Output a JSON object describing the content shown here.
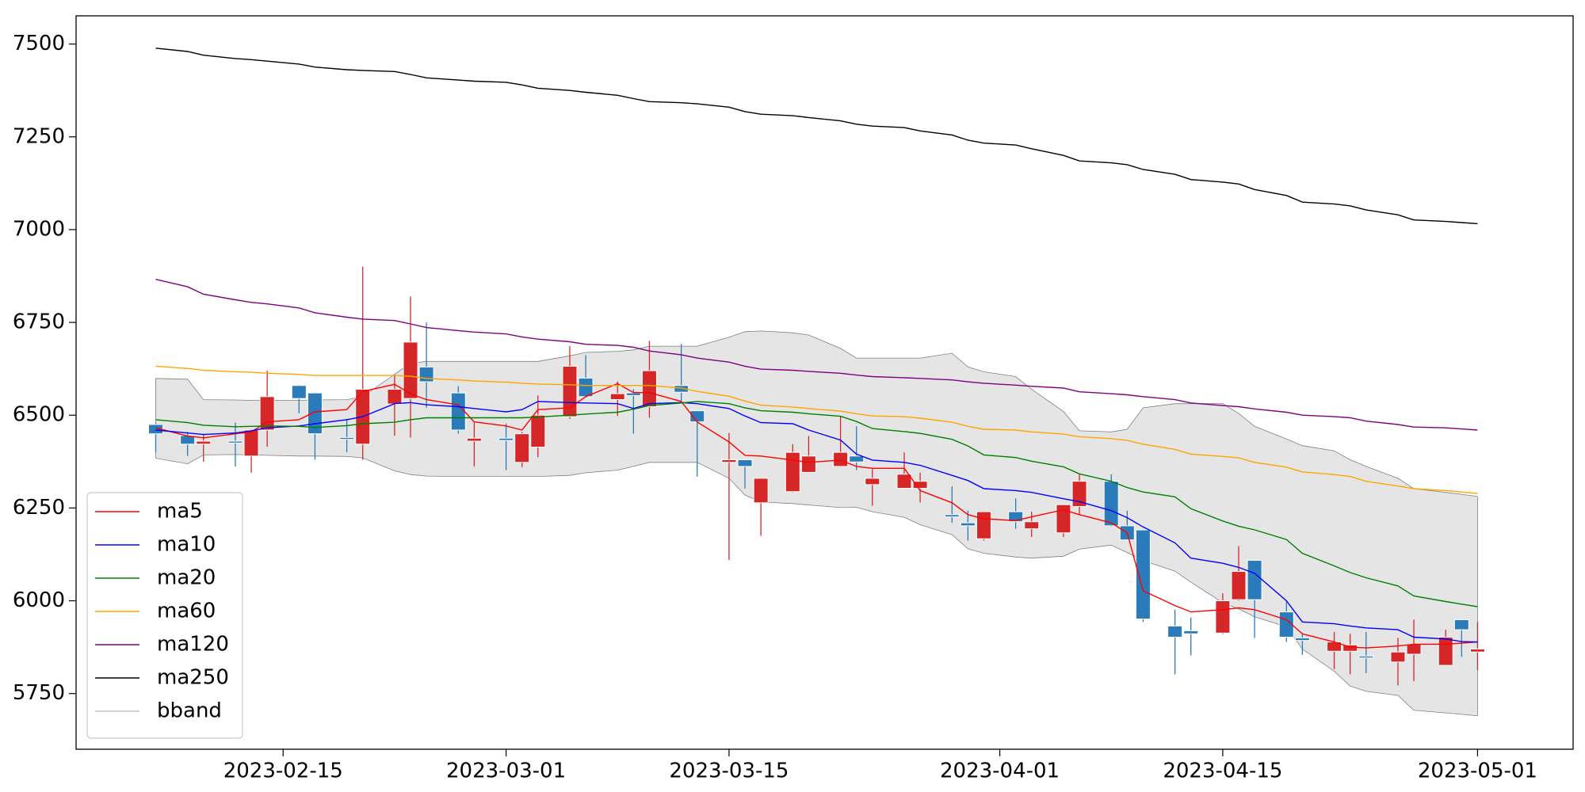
{
  "chart_data": {
    "type": "candlestick",
    "x": [
      "2023-02-07",
      "2023-02-09",
      "2023-02-10",
      "2023-02-12",
      "2023-02-13",
      "2023-02-14",
      "2023-02-16",
      "2023-02-17",
      "2023-02-19",
      "2023-02-20",
      "2023-02-22",
      "2023-02-23",
      "2023-02-24",
      "2023-02-26",
      "2023-02-27",
      "2023-03-01",
      "2023-03-02",
      "2023-03-03",
      "2023-03-05",
      "2023-03-06",
      "2023-03-08",
      "2023-03-09",
      "2023-03-10",
      "2023-03-12",
      "2023-03-13",
      "2023-03-15",
      "2023-03-16",
      "2023-03-17",
      "2023-03-19",
      "2023-03-20",
      "2023-03-22",
      "2023-03-23",
      "2023-03-24",
      "2023-03-26",
      "2023-03-27",
      "2023-03-29",
      "2023-03-30",
      "2023-03-31",
      "2023-04-02",
      "2023-04-03",
      "2023-04-05",
      "2023-04-06",
      "2023-04-08",
      "2023-04-09",
      "2023-04-10",
      "2023-04-12",
      "2023-04-13",
      "2023-04-15",
      "2023-04-16",
      "2023-04-17",
      "2023-04-19",
      "2023-04-20",
      "2023-04-22",
      "2023-04-23",
      "2023-04-24",
      "2023-04-26",
      "2023-04-27",
      "2023-04-29",
      "2023-04-30",
      "2023-05-01"
    ],
    "open": [
      6475,
      6445,
      6422,
      6430,
      6390,
      6460,
      6580,
      6560,
      6440,
      6422,
      6530,
      6545,
      6630,
      6560,
      6430,
      6438,
      6373,
      6414,
      6496,
      6600,
      6542,
      6560,
      6523,
      6580,
      6512,
      6373,
      6380,
      6264,
      6294,
      6346,
      6362,
      6390,
      6313,
      6303,
      6303,
      6232,
      6210,
      6167,
      6240,
      6194,
      6183,
      6254,
      6322,
      6202,
      6191,
      5932,
      5919,
      5913,
      6003,
      6109,
      5970,
      5900,
      5864,
      5864,
      5851,
      5835,
      5856,
      5826,
      5949,
      5862
    ],
    "high": [
      6480,
      6455,
      6450,
      6480,
      6462,
      6620,
      6582,
      6562,
      6490,
      6900,
      6610,
      6820,
      6750,
      6578,
      6480,
      6478,
      6455,
      6553,
      6686,
      6662,
      6591,
      6570,
      6700,
      6692,
      6513,
      6452,
      6380,
      6332,
      6422,
      6444,
      6496,
      6470,
      6355,
      6400,
      6345,
      6308,
      6243,
      6242,
      6276,
      6240,
      6260,
      6341,
      6341,
      6243,
      6192,
      5976,
      5955,
      6020,
      6147,
      6110,
      5998,
      5913,
      5916,
      5911,
      5916,
      5900,
      5949,
      5922,
      5950,
      5943
    ],
    "low": [
      6400,
      6390,
      6375,
      6362,
      6345,
      6415,
      6505,
      6380,
      6400,
      6380,
      6445,
      6440,
      6520,
      6450,
      6362,
      6352,
      6360,
      6387,
      6490,
      6548,
      6498,
      6450,
      6493,
      6537,
      6335,
      6110,
      6302,
      6175,
      6292,
      6345,
      6360,
      6352,
      6256,
      6303,
      6265,
      6210,
      6162,
      6162,
      6194,
      6172,
      6172,
      6232,
      6200,
      6164,
      5943,
      5802,
      5853,
      5910,
      6000,
      5900,
      5889,
      5854,
      5816,
      5802,
      5805,
      5772,
      5783,
      5826,
      5849,
      5813
    ],
    "close": [
      6450,
      6422,
      6430,
      6425,
      6460,
      6550,
      6545,
      6450,
      6435,
      6570,
      6570,
      6697,
      6590,
      6460,
      6438,
      6432,
      6450,
      6500,
      6632,
      6550,
      6558,
      6553,
      6620,
      6562,
      6482,
      6380,
      6362,
      6330,
      6400,
      6390,
      6400,
      6374,
      6330,
      6341,
      6322,
      6226,
      6202,
      6240,
      6213,
      6213,
      6259,
      6322,
      6202,
      6164,
      5951,
      5902,
      5911,
      6000,
      6079,
      6003,
      5902,
      5893,
      5889,
      5881,
      5846,
      5862,
      5883,
      5902,
      5922,
      5870
    ],
    "up_color": "#d62728",
    "down_color": "#2b7bba",
    "series": [
      {
        "name": "ma5",
        "color": "#ff0000",
        "values": [
          6466,
          6444,
          6439,
          6450,
          6455,
          6482,
          6488,
          6509,
          6515,
          6564,
          6583,
          6558,
          6542,
          6528,
          6482,
          6471,
          6460,
          6515,
          6520,
          6550,
          6585,
          6561,
          6561,
          6537,
          6482,
          6428,
          6392,
          6390,
          6379,
          6373,
          6379,
          6362,
          6357,
          6357,
          6297,
          6264,
          6232,
          6221,
          6216,
          6226,
          6245,
          6232,
          6210,
          6183,
          6027,
          5987,
          5970,
          5976,
          5981,
          5976,
          5949,
          5911,
          5889,
          5875,
          5873,
          5878,
          5883,
          5883,
          5886,
          5889
        ]
      },
      {
        "name": "ma10",
        "color": "#0000ff",
        "values": [
          6460,
          6452,
          6448,
          6452,
          6458,
          6466,
          6471,
          6477,
          6488,
          6496,
          6531,
          6534,
          6528,
          6523,
          6518,
          6509,
          6515,
          6537,
          6534,
          6533,
          6531,
          6518,
          6531,
          6534,
          6531,
          6518,
          6498,
          6480,
          6477,
          6460,
          6433,
          6395,
          6379,
          6373,
          6365,
          6338,
          6324,
          6302,
          6297,
          6292,
          6275,
          6267,
          6243,
          6224,
          6199,
          6156,
          6115,
          6101,
          6090,
          6074,
          6000,
          5943,
          5938,
          5932,
          5927,
          5922,
          5902,
          5897,
          5890,
          5889
        ]
      },
      {
        "name": "ma20",
        "color": "#008000",
        "values": [
          6488,
          6480,
          6473,
          6469,
          6470,
          6471,
          6470,
          6467,
          6472,
          6477,
          6481,
          6488,
          6493,
          6493,
          6493,
          6493,
          6493,
          6495,
          6500,
          6503,
          6508,
          6516,
          6526,
          6533,
          6537,
          6531,
          6520,
          6512,
          6508,
          6504,
          6497,
          6483,
          6464,
          6456,
          6451,
          6435,
          6417,
          6393,
          6386,
          6376,
          6361,
          6342,
          6322,
          6305,
          6293,
          6280,
          6248,
          6215,
          6201,
          6191,
          6165,
          6128,
          6094,
          6076,
          6062,
          6040,
          6013,
          5998,
          5991,
          5984
        ]
      },
      {
        "name": "ma60",
        "color": "#ffa500",
        "values": [
          6632,
          6626,
          6621,
          6617,
          6616,
          6613,
          6610,
          6607,
          6607,
          6607,
          6607,
          6605,
          6599,
          6595,
          6592,
          6589,
          6586,
          6584,
          6582,
          6580,
          6580,
          6580,
          6580,
          6573,
          6564,
          6551,
          6538,
          6527,
          6522,
          6518,
          6511,
          6504,
          6498,
          6496,
          6492,
          6481,
          6470,
          6462,
          6460,
          6455,
          6449,
          6442,
          6437,
          6432,
          6422,
          6408,
          6395,
          6389,
          6385,
          6373,
          6360,
          6347,
          6340,
          6335,
          6322,
          6309,
          6302,
          6297,
          6293,
          6289
        ]
      },
      {
        "name": "ma120",
        "color": "#800080",
        "values": [
          6866,
          6846,
          6826,
          6811,
          6804,
          6800,
          6789,
          6776,
          6764,
          6759,
          6755,
          6746,
          6736,
          6728,
          6724,
          6719,
          6711,
          6705,
          6698,
          6691,
          6688,
          6683,
          6673,
          6663,
          6654,
          6643,
          6632,
          6624,
          6621,
          6618,
          6613,
          6608,
          6604,
          6601,
          6599,
          6595,
          6590,
          6586,
          6581,
          6578,
          6573,
          6563,
          6558,
          6555,
          6550,
          6542,
          6533,
          6526,
          6523,
          6517,
          6508,
          6500,
          6496,
          6493,
          6484,
          6475,
          6468,
          6466,
          6463,
          6460
        ]
      },
      {
        "name": "ma250",
        "color": "#000000",
        "values": [
          7489,
          7480,
          7470,
          7461,
          7458,
          7454,
          7446,
          7438,
          7431,
          7429,
          7426,
          7418,
          7409,
          7403,
          7400,
          7397,
          7390,
          7381,
          7375,
          7370,
          7362,
          7353,
          7345,
          7342,
          7339,
          7330,
          7318,
          7311,
          7307,
          7302,
          7293,
          7284,
          7279,
          7275,
          7266,
          7255,
          7241,
          7233,
          7228,
          7218,
          7200,
          7185,
          7180,
          7175,
          7162,
          7149,
          7135,
          7128,
          7123,
          7108,
          7092,
          7074,
          7069,
          7064,
          7053,
          7040,
          7026,
          7022,
          7019,
          7016
        ]
      }
    ],
    "band": {
      "name": "bband",
      "color": "#808080",
      "fill": "#e5e5e5",
      "upper": [
        6599,
        6597,
        6542,
        6541,
        6540,
        6540,
        6540,
        6541,
        6542,
        6550,
        6610,
        6640,
        6645,
        6645,
        6645,
        6645,
        6645,
        6645,
        6660,
        6669,
        6672,
        6676,
        6686,
        6686,
        6686,
        6710,
        6725,
        6727,
        6722,
        6716,
        6680,
        6654,
        6654,
        6654,
        6654,
        6667,
        6630,
        6617,
        6604,
        6570,
        6510,
        6458,
        6455,
        6462,
        6520,
        6531,
        6531,
        6531,
        6505,
        6470,
        6436,
        6418,
        6404,
        6380,
        6362,
        6330,
        6302,
        6292,
        6287,
        6281
      ],
      "lower": [
        6384,
        6369,
        6393,
        6394,
        6393,
        6392,
        6390,
        6390,
        6389,
        6385,
        6350,
        6340,
        6336,
        6335,
        6335,
        6335,
        6335,
        6335,
        6338,
        6345,
        6352,
        6362,
        6373,
        6373,
        6373,
        6330,
        6285,
        6266,
        6262,
        6258,
        6251,
        6252,
        6240,
        6225,
        6205,
        6178,
        6140,
        6128,
        6118,
        6115,
        6120,
        6139,
        6150,
        6130,
        6108,
        6080,
        6050,
        5995,
        5978,
        5957,
        5930,
        5870,
        5810,
        5770,
        5756,
        5745,
        5705,
        5698,
        5694,
        5690
      ]
    },
    "xlim": [
      "2023-02-02",
      "2023-05-07"
    ],
    "xticks": [
      "2023-02-15",
      "2023-03-01",
      "2023-03-15",
      "2023-04-01",
      "2023-04-15",
      "2023-05-01"
    ],
    "ylim": [
      5600,
      7576
    ],
    "yticks": [
      5750,
      6000,
      6250,
      6500,
      6750,
      7000,
      7250,
      7500
    ],
    "legend": "lower left"
  }
}
